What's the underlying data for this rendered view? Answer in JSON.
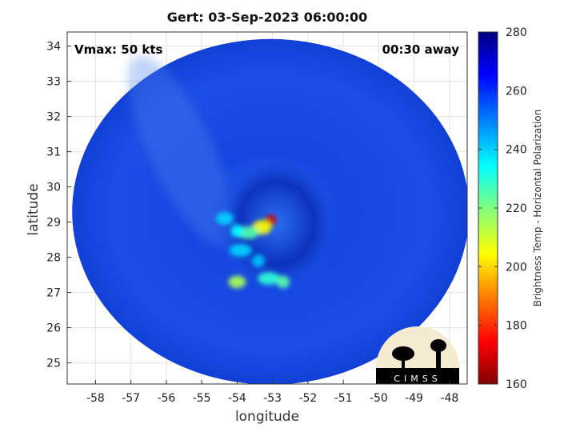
{
  "title": "Gert: 03-Sep-2023 06:00:00",
  "annotations": {
    "vmax": "Vmax: 50 kts",
    "time_away": "00:30 away"
  },
  "axes": {
    "xlabel": "longitude",
    "ylabel": "latitude",
    "xlim": [
      -58.8,
      -47.5
    ],
    "ylim": [
      24.4,
      34.4
    ],
    "xticks": [
      -58,
      -57,
      -56,
      -55,
      -54,
      -53,
      -52,
      -51,
      -50,
      -49,
      -48
    ],
    "yticks": [
      25,
      26,
      27,
      28,
      29,
      30,
      31,
      32,
      33,
      34
    ],
    "grid": true
  },
  "colorbar": {
    "label": "Brightness Temp - Horizontal Polarization",
    "range": [
      160,
      280
    ],
    "ticks": [
      160,
      180,
      200,
      220,
      240,
      260,
      280
    ],
    "colormap": [
      "#800000",
      "#ff0000",
      "#ff8000",
      "#ffff00",
      "#80ff80",
      "#00ffff",
      "#0080ff",
      "#0000ff",
      "#000080"
    ]
  },
  "swath": {
    "center_lon": -53.1,
    "center_lat": 29.2
  },
  "storm_features": [
    {
      "lon": -53.05,
      "lat": 29.05,
      "temp": 170
    },
    {
      "lon": -53.3,
      "lat": 28.85,
      "temp": 205
    },
    {
      "lon": -53.7,
      "lat": 28.7,
      "temp": 225
    },
    {
      "lon": -54.0,
      "lat": 28.75,
      "temp": 235
    },
    {
      "lon": -54.35,
      "lat": 29.1,
      "temp": 240
    },
    {
      "lon": -53.9,
      "lat": 28.2,
      "temp": 240
    },
    {
      "lon": -53.4,
      "lat": 27.9,
      "temp": 242
    },
    {
      "lon": -54.0,
      "lat": 27.3,
      "temp": 215
    },
    {
      "lon": -53.1,
      "lat": 27.4,
      "temp": 230
    },
    {
      "lon": -52.7,
      "lat": 27.3,
      "temp": 225
    }
  ],
  "logo": {
    "text": "CIMSS"
  }
}
